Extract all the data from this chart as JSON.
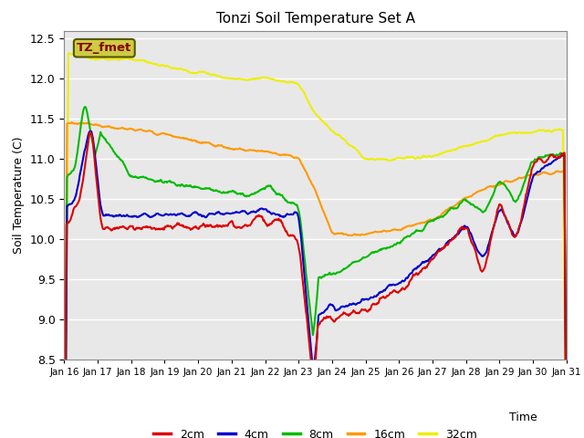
{
  "title": "Tonzi Soil Temperature Set A",
  "xlabel": "Time",
  "ylabel": "Soil Temperature (C)",
  "ylim": [
    8.5,
    12.6
  ],
  "background_color": "#e8e8e8",
  "legend_label": "TZ_fmet",
  "legend_box_facecolor": "#cccc44",
  "legend_box_edgecolor": "#555500",
  "legend_box_text_color": "#880000",
  "x_tick_labels": [
    "Jan 16",
    "Jan 17",
    "Jan 18",
    "Jan 19",
    "Jan 20",
    "Jan 21",
    "Jan 22",
    "Jan 23",
    "Jan 24",
    "Jan 25",
    "Jan 26",
    "Jan 27",
    "Jan 28",
    "Jan 29",
    "Jan 30",
    "Jan 31"
  ],
  "series_colors": {
    "2cm": "#dd0000",
    "4cm": "#0000cc",
    "8cm": "#00bb00",
    "16cm": "#ff9900",
    "32cm": "#eeee00"
  },
  "series_linewidth": 1.5,
  "yticks": [
    8.5,
    9.0,
    9.5,
    10.0,
    10.5,
    11.0,
    11.5,
    12.0,
    12.5
  ]
}
